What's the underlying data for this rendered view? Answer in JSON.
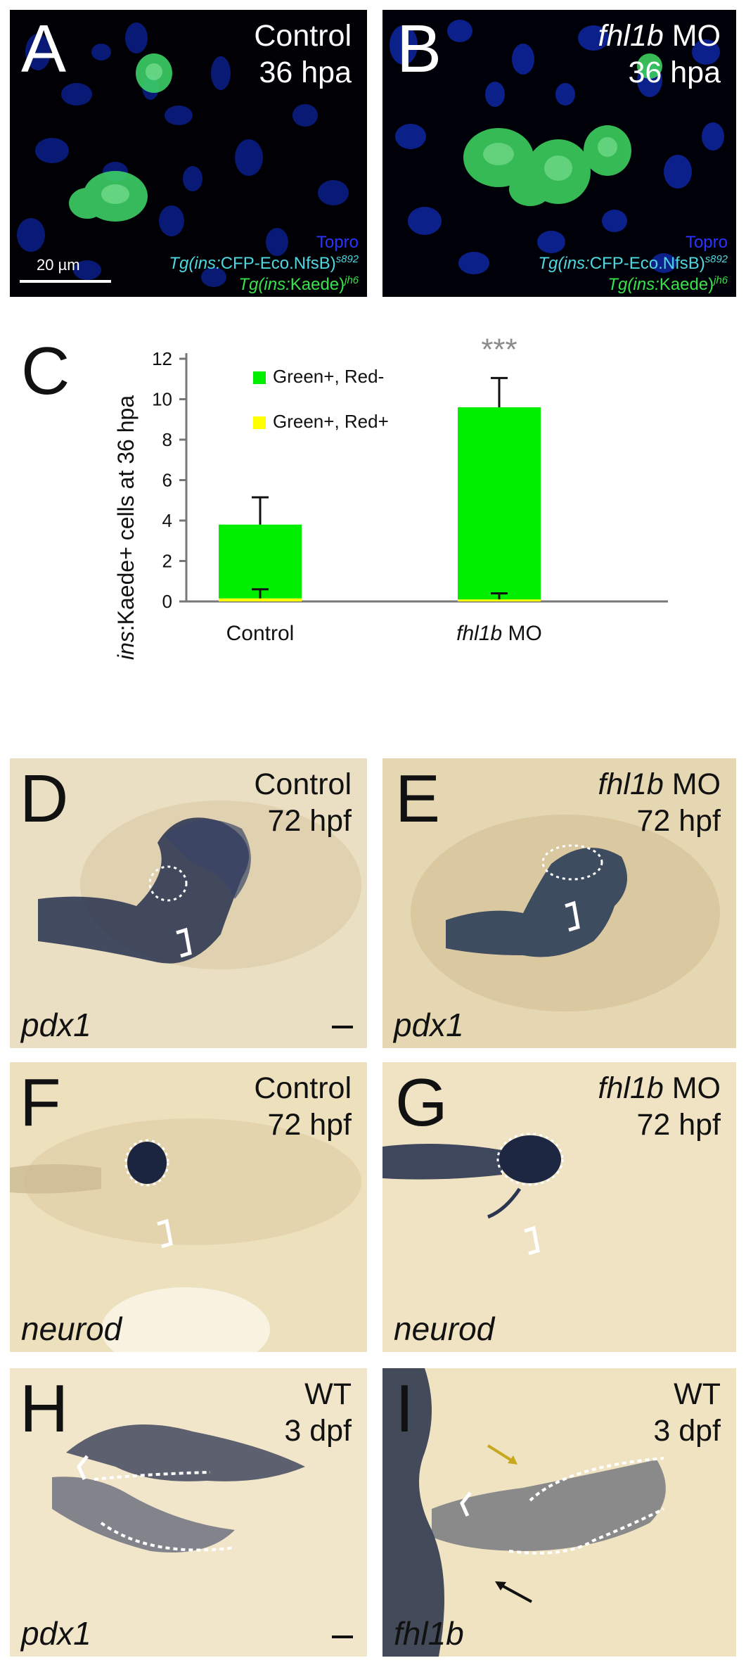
{
  "panels": {
    "A": {
      "letter": "A",
      "cond1": "Control",
      "cond2": "36 hpa",
      "topro": "Topro",
      "tg1_pre": "Tg(ins:",
      "tg1_mid": "CFP-Eco.NfsB)",
      "tg1_sup": "s892",
      "tg2_pre": "Tg(ins:",
      "tg2_mid": "Kaede)",
      "tg2_sup": "jh6",
      "scale_label": "20 µm"
    },
    "B": {
      "letter": "B",
      "cond1_i": "fhl1b",
      "cond1_r": " MO",
      "cond2": "36 hpa",
      "topro": "Topro",
      "tg1_pre": "Tg(ins:",
      "tg1_mid": "CFP-Eco.NfsB)",
      "tg1_sup": "s892",
      "tg2_pre": "Tg(ins:",
      "tg2_mid": "Kaede)",
      "tg2_sup": "jh6"
    },
    "D": {
      "letter": "D",
      "cond1": "Control",
      "cond2": "72 hpf",
      "gene": "pdx1"
    },
    "E": {
      "letter": "E",
      "cond1_i": "fhl1b",
      "cond1_r": " MO",
      "cond2": "72 hpf",
      "gene": "pdx1"
    },
    "F": {
      "letter": "F",
      "cond1": "Control",
      "cond2": "72 hpf",
      "gene": "neurod"
    },
    "G": {
      "letter": "G",
      "cond1_i": "fhl1b",
      "cond1_r": " MO",
      "cond2": "72 hpf",
      "gene": "neurod"
    },
    "H": {
      "letter": "H",
      "cond1": "WT",
      "cond2": "3 dpf",
      "gene": "pdx1"
    },
    "I": {
      "letter": "I",
      "cond1": "WT",
      "cond2": "3 dpf",
      "gene": "fhl1b"
    }
  },
  "chart_data": {
    "type": "bar",
    "panel_letter": "C",
    "categories": [
      "Control",
      "fhl1b MO"
    ],
    "category_labels": [
      {
        "italic": "",
        "rest": "Control"
      },
      {
        "italic": "fhl1b",
        "rest": " MO"
      }
    ],
    "ylabel_italic": "ins",
    "ylabel_rest": ":Kaede+ cells at 36 hpa",
    "ylim": [
      0,
      12
    ],
    "yticks": [
      "0",
      "2",
      "4",
      "6",
      "8",
      "10",
      "12"
    ],
    "stacked": true,
    "series": [
      {
        "name": "Green+, Red+",
        "color": "#ffff00",
        "values": [
          0.15,
          0.1
        ],
        "error": [
          0.45,
          0.3
        ]
      },
      {
        "name": "Green+, Red-",
        "color": "#00ee00",
        "values": [
          3.65,
          9.5
        ],
        "error": [
          1.35,
          1.45
        ]
      }
    ],
    "legend": [
      "Green+, Red-",
      "Green+, Red+"
    ],
    "significance": [
      "",
      "***"
    ],
    "significance_color": "#8c8c8c",
    "legend_placement": "top-left"
  }
}
